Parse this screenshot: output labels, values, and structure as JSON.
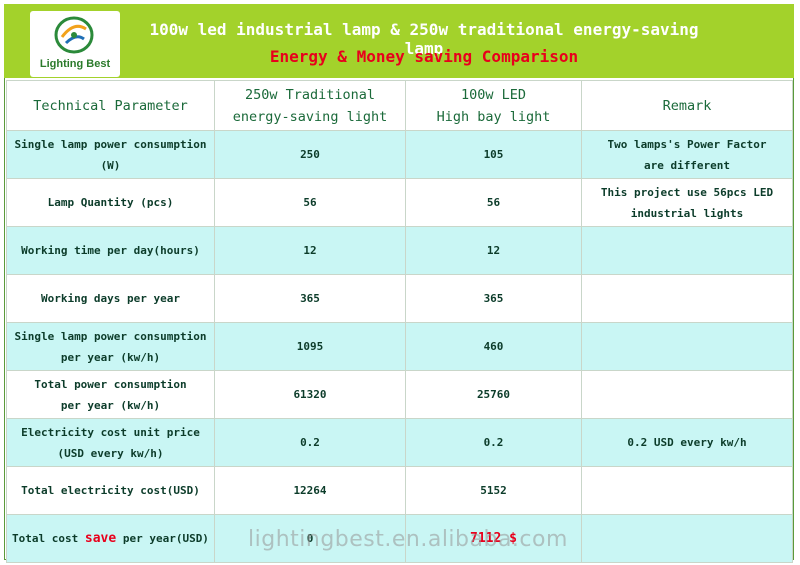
{
  "header": {
    "logo_text": "Lighting Best",
    "title": "100w led industrial lamp & 250w traditional energy-saving lamp",
    "subtitle": "Energy & Money saving Comparison"
  },
  "columns": {
    "c1": "Technical Parameter",
    "c2_line1": "250w Traditional",
    "c2_line2": "energy-saving light",
    "c3_line1": "100w LED",
    "c3_line2": "High bay  light",
    "c4": "Remark"
  },
  "rows": [
    {
      "param_l1": "Single lamp  power consumption",
      "param_l2": "(W)",
      "traditional": "250",
      "led": "105",
      "remark_l1": "Two lamps's Power Factor",
      "remark_l2": "are different"
    },
    {
      "param_l1": "Lamp Quantity (pcs)",
      "param_l2": "",
      "traditional": "56",
      "led": "56",
      "remark_l1": "This project use 56pcs LED",
      "remark_l2": "industrial lights"
    },
    {
      "param_l1": "Working time per day(hours)",
      "param_l2": "",
      "traditional": "12",
      "led": "12",
      "remark_l1": "",
      "remark_l2": ""
    },
    {
      "param_l1": "Working days per year",
      "param_l2": "",
      "traditional": "365",
      "led": "365",
      "remark_l1": "",
      "remark_l2": ""
    },
    {
      "param_l1": "Single lamp power consumption",
      "param_l2": "per year (kw/h)",
      "traditional": "1095",
      "led": "460",
      "remark_l1": "",
      "remark_l2": ""
    },
    {
      "param_l1": "Total power consumption",
      "param_l2": "per year (kw/h)",
      "traditional": "61320",
      "led": "25760",
      "remark_l1": "",
      "remark_l2": ""
    },
    {
      "param_l1": "Electricity cost unit price",
      "param_l2": "(USD every kw/h)",
      "traditional": "0.2",
      "led": "0.2",
      "remark_l1": "0.2 USD every kw/h",
      "remark_l2": ""
    },
    {
      "param_l1": "Total electricity cost(USD)",
      "param_l2": "",
      "traditional": "12264",
      "led": "5152",
      "remark_l1": "",
      "remark_l2": ""
    }
  ],
  "last_row": {
    "param_pre": "Total cost ",
    "param_save": "save",
    "param_post": " per year(USD)",
    "traditional": "0",
    "led": "7112 $",
    "remark": ""
  },
  "watermark": "lightingbest.en.alibaba.com",
  "colors": {
    "header_green": "#a3d22b",
    "row_cyan": "#c9f6f4",
    "accent_red": "#e8001c"
  }
}
